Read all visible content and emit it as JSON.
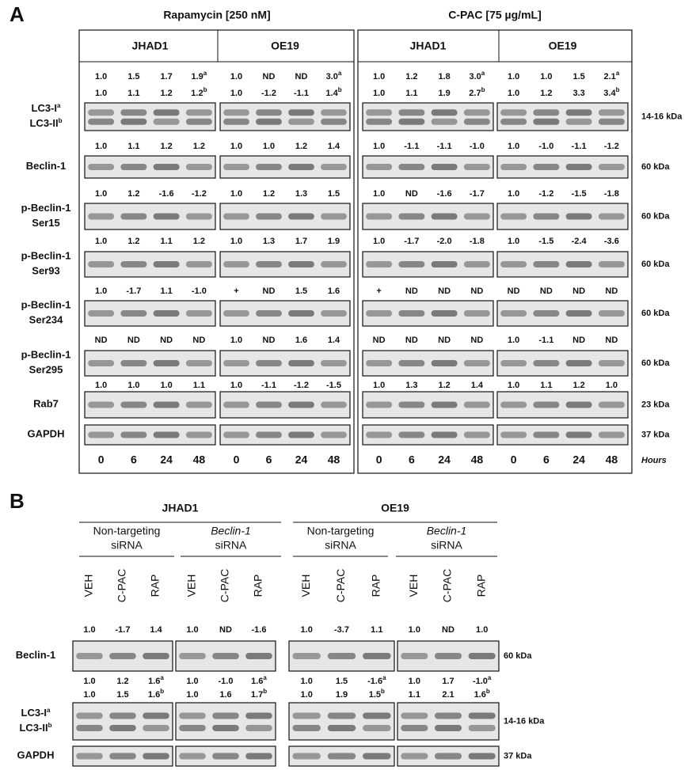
{
  "panel_a": {
    "label": "A",
    "treatments": [
      "Rapamycin [250 nM]",
      "C-PAC [75 µg/mL]"
    ],
    "cell_lines": [
      "JHAD1",
      "OE19",
      "JHAD1",
      "OE19"
    ],
    "rows": [
      {
        "label_lines": [
          {
            "text": "LC3-I",
            "sup": "a"
          },
          {
            "text": "LC3-II",
            "sup": "b"
          }
        ],
        "kda": "14-16 kDa",
        "values": [
          [
            "1.0",
            "1.5",
            "1.7",
            {
              "text": "1.9",
              "sup": "a"
            },
            "1.0",
            "ND",
            "ND",
            {
              "text": "3.0",
              "sup": "a"
            },
            "1.0",
            "1.2",
            "1.8",
            {
              "text": "3.0",
              "sup": "a"
            },
            "1.0",
            "1.0",
            "1.5",
            {
              "text": "2.1",
              "sup": "a"
            }
          ],
          [
            "1.0",
            "1.1",
            "1.2",
            {
              "text": "1.2",
              "sup": "b"
            },
            "1.0",
            "-1.2",
            "-1.1",
            {
              "text": "1.4",
              "sup": "b"
            },
            "1.0",
            "1.1",
            "1.9",
            {
              "text": "2.7",
              "sup": "b"
            },
            "1.0",
            "1.2",
            "3.3",
            {
              "text": "3.4",
              "sup": "b"
            }
          ]
        ]
      },
      {
        "label_lines": [
          {
            "text": "Beclin-1"
          }
        ],
        "kda": "60 kDa",
        "values": [
          [
            "1.0",
            "1.1",
            "1.2",
            "1.2",
            "1.0",
            "1.0",
            "1.2",
            "1.4",
            "1.0",
            "-1.1",
            "-1.1",
            "-1.0",
            "1.0",
            "-1.0",
            "-1.1",
            "-1.2"
          ]
        ]
      },
      {
        "label_lines": [
          {
            "text": "p-Beclin-1"
          },
          {
            "text": "Ser15"
          }
        ],
        "kda": "60 kDa",
        "values": [
          [
            "1.0",
            "1.2",
            "-1.6",
            "-1.2",
            "1.0",
            "1.2",
            "1.3",
            "1.5",
            "1.0",
            "ND",
            "-1.6",
            "-1.7",
            "1.0",
            "-1.2",
            "-1.5",
            "-1.8"
          ]
        ]
      },
      {
        "label_lines": [
          {
            "text": "p-Beclin-1"
          },
          {
            "text": "Ser93"
          }
        ],
        "kda": "60 kDa",
        "values": [
          [
            "1.0",
            "1.2",
            "1.1",
            "1.2",
            "1.0",
            "1.3",
            "1.7",
            "1.9",
            "1.0",
            "-1.7",
            "-2.0",
            "-1.8",
            "1.0",
            "-1.5",
            "-2.4",
            "-3.6"
          ]
        ]
      },
      {
        "label_lines": [
          {
            "text": "p-Beclin-1"
          },
          {
            "text": "Ser234"
          }
        ],
        "kda": "60 kDa",
        "values": [
          [
            "1.0",
            "-1.7",
            "1.1",
            "-1.0",
            "+",
            "ND",
            "1.5",
            "1.6",
            "+",
            "ND",
            "ND",
            "ND",
            "ND",
            "ND",
            "ND",
            "ND"
          ]
        ]
      },
      {
        "label_lines": [
          {
            "text": "p-Beclin-1"
          },
          {
            "text": "Ser295"
          }
        ],
        "kda": "60 kDa",
        "values": [
          [
            "ND",
            "ND",
            "ND",
            "ND",
            "1.0",
            "ND",
            "1.6",
            "1.4",
            "ND",
            "ND",
            "ND",
            "ND",
            "1.0",
            "-1.1",
            "ND",
            "ND"
          ]
        ]
      },
      {
        "label_lines": [
          {
            "text": "Rab7"
          }
        ],
        "kda": "23 kDa",
        "values": [
          [
            "1.0",
            "1.0",
            "1.0",
            "1.1",
            "1.0",
            "-1.1",
            "-1.2",
            "-1.5",
            "1.0",
            "1.3",
            "1.2",
            "1.4",
            "1.0",
            "1.1",
            "1.2",
            "1.0"
          ]
        ]
      },
      {
        "label_lines": [
          {
            "text": "GAPDH"
          }
        ],
        "kda": "37 kDa",
        "values": []
      }
    ],
    "hours": [
      "0",
      "6",
      "24",
      "48",
      "0",
      "6",
      "24",
      "48",
      "0",
      "6",
      "24",
      "48",
      "0",
      "6",
      "24",
      "48"
    ],
    "hours_label": "Hours"
  },
  "panel_b": {
    "label": "B",
    "cell_lines": [
      "JHAD1",
      "OE19"
    ],
    "groups": [
      {
        "line1": "Non-targeting",
        "line2": "siRNA",
        "italic": false
      },
      {
        "line1": "Beclin-1",
        "line2": "siRNA",
        "italic": true
      },
      {
        "line1": "Non-targeting",
        "line2": "siRNA",
        "italic": false
      },
      {
        "line1": "Beclin-1",
        "line2": "siRNA",
        "italic": true
      }
    ],
    "lanes": [
      "VEH",
      "C-PAC",
      "RAP",
      "VEH",
      "C-PAC",
      "RAP",
      "VEH",
      "C-PAC",
      "RAP",
      "VEH",
      "C-PAC",
      "RAP"
    ],
    "rows": [
      {
        "label_lines": [
          {
            "text": "Beclin-1"
          }
        ],
        "kda": "60 kDa",
        "values": [
          [
            "1.0",
            "-1.7",
            "1.4",
            "1.0",
            "ND",
            "-1.6",
            "1.0",
            "-3.7",
            "1.1",
            "1.0",
            "ND",
            "1.0"
          ]
        ]
      },
      {
        "label_lines": [
          {
            "text": "LC3-I",
            "sup": "a"
          },
          {
            "text": "LC3-II",
            "sup": "b"
          }
        ],
        "kda": "14-16 kDa",
        "values": [
          [
            "1.0",
            "1.2",
            {
              "text": "1.6",
              "sup": "a"
            },
            "1.0",
            "-1.0",
            {
              "text": "1.6",
              "sup": "a"
            },
            "1.0",
            "1.5",
            {
              "text": "-1.6",
              "sup": "a"
            },
            "1.0",
            "1.7",
            {
              "text": "-1.0",
              "sup": "a"
            }
          ],
          [
            "1.0",
            "1.5",
            {
              "text": "1.6",
              "sup": "b"
            },
            "1.0",
            "1.6",
            {
              "text": "1.7",
              "sup": "b"
            },
            "1.0",
            "1.9",
            {
              "text": "1.5",
              "sup": "b"
            },
            "1.1",
            "2.1",
            {
              "text": "1.6",
              "sup": "b"
            }
          ]
        ]
      },
      {
        "label_lines": [
          {
            "text": "GAPDH"
          }
        ],
        "kda": "37 kDa",
        "values": []
      }
    ]
  }
}
